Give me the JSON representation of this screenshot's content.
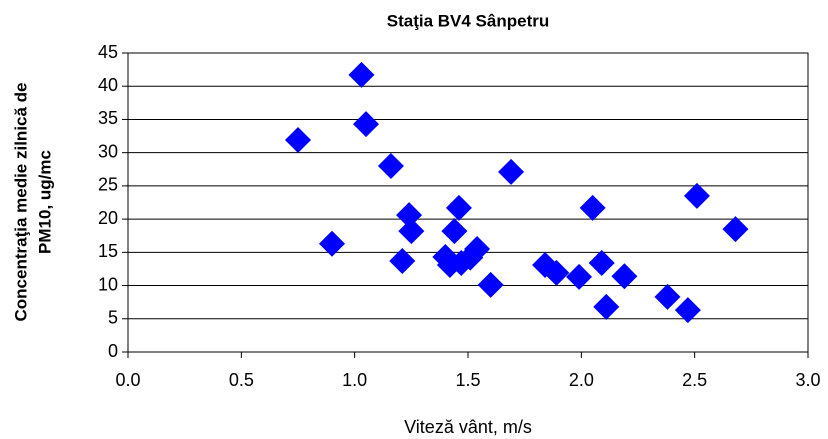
{
  "chart_data": {
    "type": "scatter",
    "title": "Staţia BV4 Sânpetru",
    "xlabel": "Viteză vânt, m/s",
    "ylabel": [
      "Concentraţia medie zilnică de",
      "PM10, ug/mc"
    ],
    "color": "#0000ff",
    "x": [
      0.75,
      0.9,
      1.03,
      1.05,
      1.16,
      1.21,
      1.24,
      1.25,
      1.4,
      1.42,
      1.44,
      1.46,
      1.47,
      1.51,
      1.54,
      1.6,
      1.69,
      1.84,
      1.89,
      1.99,
      2.05,
      2.09,
      2.11,
      2.19,
      2.38,
      2.47,
      2.51,
      2.68
    ],
    "values": [
      31.9,
      16.3,
      41.7,
      34.3,
      28.0,
      13.7,
      20.6,
      18.2,
      14.3,
      13.1,
      18.2,
      21.7,
      13.4,
      14.2,
      15.5,
      10.1,
      27.1,
      13.1,
      11.9,
      11.3,
      21.7,
      13.4,
      6.8,
      11.4,
      8.3,
      6.3,
      23.5,
      18.5
    ],
    "xlim": [
      0,
      3
    ],
    "xticks": [
      {
        "value": 0,
        "label": "0.0"
      },
      {
        "value": 0.5,
        "label": "0.5"
      },
      {
        "value": 1,
        "label": "1.0"
      },
      {
        "value": 1.5,
        "label": "1.5"
      },
      {
        "value": 2,
        "label": "2.0"
      },
      {
        "value": 2.5,
        "label": "2.5"
      },
      {
        "value": 3,
        "label": "3.0"
      }
    ],
    "ylim": [
      0,
      45
    ],
    "yticks": [
      0,
      5,
      10,
      15,
      20,
      25,
      30,
      35,
      40,
      45
    ],
    "grid": true
  }
}
